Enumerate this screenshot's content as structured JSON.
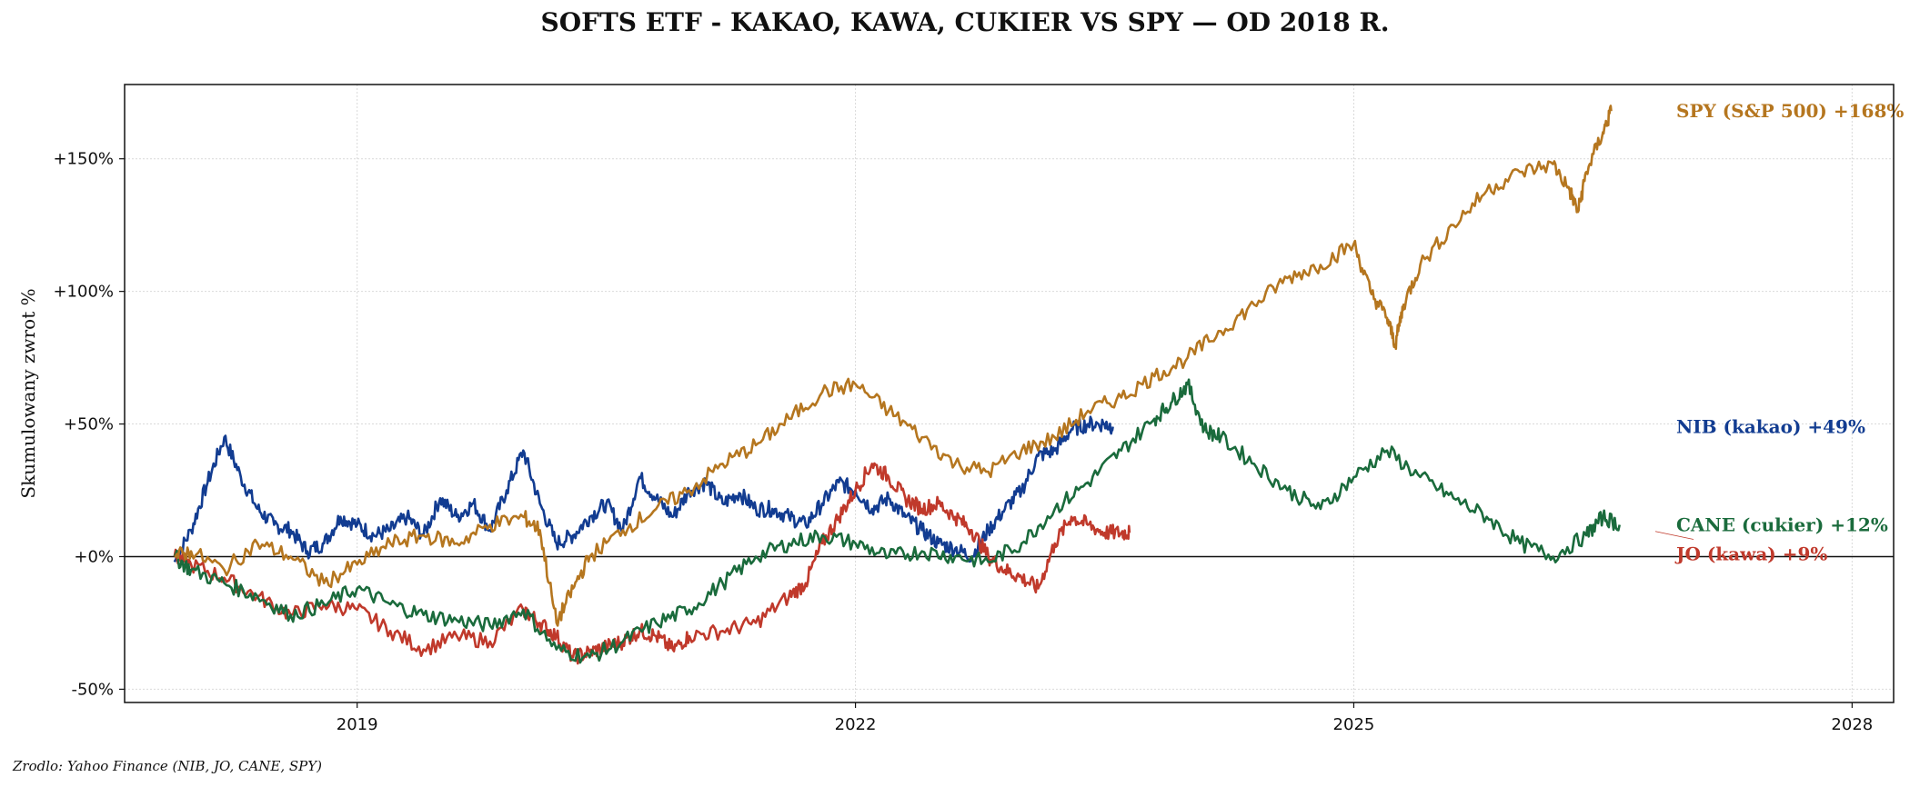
{
  "page": {
    "source_note": "Zrodlo: Yahoo Finance (NIB, JO, CANE, SPY)"
  },
  "chart_data": {
    "type": "line",
    "title": "SOFTS ETF - KAKAO, KAWA, CUKIER VS SPY — OD 2018 R.",
    "xlabel": "",
    "ylabel": "Skumulowany zwrot %",
    "xlim": [
      2017.6,
      2028.25
    ],
    "ylim": [
      -55,
      178
    ],
    "x_ticks": [
      2019,
      2022,
      2025,
      2028
    ],
    "x_tick_labels": [
      "2019",
      "2022",
      "2025",
      "2028"
    ],
    "y_ticks": [
      -50,
      0,
      50,
      100,
      150
    ],
    "y_tick_labels": [
      "-50%",
      "+0%",
      "+50%",
      "+100%",
      "+150%"
    ],
    "grid": true,
    "zero_line": true,
    "series": [
      {
        "name": "NIB (kakao)",
        "end_label": "NIB (kakao)  +49%",
        "color": "#123c91",
        "x": [
          2017.9,
          2018.0,
          2018.1,
          2018.2,
          2018.3,
          2018.4,
          2018.5,
          2018.6,
          2018.7,
          2018.8,
          2018.9,
          2019.0,
          2019.1,
          2019.2,
          2019.3,
          2019.4,
          2019.5,
          2019.6,
          2019.7,
          2019.8,
          2019.9,
          2020.0,
          2020.1,
          2020.2,
          2020.3,
          2020.4,
          2020.5,
          2020.6,
          2020.7,
          2020.8,
          2020.9,
          2021.0,
          2021.1,
          2021.2,
          2021.3,
          2021.4,
          2021.5,
          2021.6,
          2021.7,
          2021.8,
          2021.9,
          2022.0,
          2022.1,
          2022.2,
          2022.3,
          2022.4,
          2022.5,
          2022.6,
          2022.7,
          2022.8,
          2022.9,
          2023.0,
          2023.1,
          2023.2,
          2023.3,
          2023.4,
          2023.5,
          2023.55
        ],
        "y": [
          -2,
          10,
          28,
          45,
          30,
          18,
          12,
          10,
          2,
          5,
          15,
          12,
          8,
          10,
          15,
          8,
          22,
          15,
          20,
          10,
          25,
          40,
          20,
          5,
          8,
          15,
          20,
          10,
          30,
          22,
          15,
          25,
          28,
          20,
          24,
          18,
          18,
          15,
          12,
          20,
          28,
          25,
          18,
          22,
          15,
          10,
          5,
          3,
          0,
          10,
          18,
          25,
          38,
          40,
          48,
          50,
          50,
          49
        ]
      },
      {
        "name": "JO (kawa)",
        "end_label": "JO (kawa)  +9%",
        "color": "#c0392b",
        "x": [
          2017.9,
          2018.0,
          2018.2,
          2018.4,
          2018.6,
          2018.8,
          2019.0,
          2019.2,
          2019.4,
          2019.6,
          2019.8,
          2020.0,
          2020.1,
          2020.2,
          2020.3,
          2020.4,
          2020.5,
          2020.6,
          2020.7,
          2020.8,
          2020.9,
          2021.0,
          2021.2,
          2021.4,
          2021.6,
          2021.7,
          2021.8,
          2021.9,
          2022.0,
          2022.1,
          2022.2,
          2022.3,
          2022.4,
          2022.5,
          2022.6,
          2022.7,
          2022.8,
          2022.9,
          2023.0,
          2023.1,
          2023.2,
          2023.3,
          2023.4,
          2023.5,
          2023.6,
          2023.65
        ],
        "y": [
          0,
          -3,
          -8,
          -15,
          -22,
          -18,
          -20,
          -28,
          -35,
          -30,
          -32,
          -20,
          -25,
          -30,
          -38,
          -36,
          -34,
          -32,
          -28,
          -30,
          -35,
          -30,
          -28,
          -25,
          -15,
          -10,
          5,
          15,
          25,
          35,
          30,
          22,
          18,
          20,
          15,
          10,
          0,
          -5,
          -8,
          -12,
          5,
          15,
          12,
          9,
          9,
          9
        ]
      },
      {
        "name": "CANE (cukier)",
        "end_label": "CANE (cukier)  +12%",
        "color": "#1a6b3c",
        "x": [
          2017.9,
          2018.0,
          2018.2,
          2018.4,
          2018.6,
          2018.8,
          2019.0,
          2019.2,
          2019.4,
          2019.6,
          2019.8,
          2020.0,
          2020.2,
          2020.4,
          2020.6,
          2020.8,
          2021.0,
          2021.2,
          2021.4,
          2021.6,
          2021.8,
          2022.0,
          2022.2,
          2022.4,
          2022.6,
          2022.8,
          2023.0,
          2023.2,
          2023.4,
          2023.6,
          2023.8,
          2023.9,
          2024.0,
          2024.1,
          2024.2,
          2024.4,
          2024.6,
          2024.8,
          2025.0,
          2025.2,
          2025.4,
          2025.6,
          2025.8,
          2026.0,
          2026.2,
          2026.4,
          2026.5,
          2026.6
        ],
        "y": [
          0,
          -5,
          -10,
          -15,
          -22,
          -18,
          -12,
          -18,
          -22,
          -24,
          -26,
          -20,
          -35,
          -38,
          -32,
          -25,
          -20,
          -10,
          0,
          5,
          8,
          5,
          0,
          2,
          0,
          -2,
          5,
          18,
          28,
          40,
          52,
          58,
          65,
          48,
          45,
          35,
          25,
          18,
          30,
          40,
          30,
          22,
          15,
          5,
          0,
          8,
          15,
          12
        ]
      },
      {
        "name": "SPY (S&P 500)",
        "end_label": "SPY (S&P 500)  +168%",
        "color": "#b5761f",
        "x": [
          2017.9,
          2018.0,
          2018.2,
          2018.4,
          2018.6,
          2018.8,
          2019.0,
          2019.2,
          2019.4,
          2019.6,
          2019.8,
          2020.0,
          2020.1,
          2020.2,
          2020.3,
          2020.4,
          2020.6,
          2020.8,
          2021.0,
          2021.2,
          2021.4,
          2021.6,
          2021.8,
          2022.0,
          2022.2,
          2022.4,
          2022.6,
          2022.8,
          2023.0,
          2023.2,
          2023.4,
          2023.6,
          2023.8,
          2024.0,
          2024.2,
          2024.4,
          2024.6,
          2024.8,
          2025.0,
          2025.1,
          2025.2,
          2025.25,
          2025.3,
          2025.4,
          2025.6,
          2025.8,
          2026.0,
          2026.2,
          2026.3,
          2026.35,
          2026.4,
          2026.5,
          2026.55
        ],
        "y": [
          0,
          2,
          -5,
          5,
          0,
          -10,
          -3,
          5,
          8,
          5,
          12,
          15,
          10,
          -25,
          -12,
          0,
          10,
          18,
          25,
          35,
          42,
          52,
          62,
          65,
          55,
          45,
          35,
          32,
          40,
          45,
          55,
          60,
          68,
          75,
          85,
          95,
          105,
          110,
          118,
          100,
          90,
          80,
          95,
          110,
          125,
          138,
          145,
          148,
          138,
          130,
          145,
          160,
          168
        ]
      }
    ]
  }
}
